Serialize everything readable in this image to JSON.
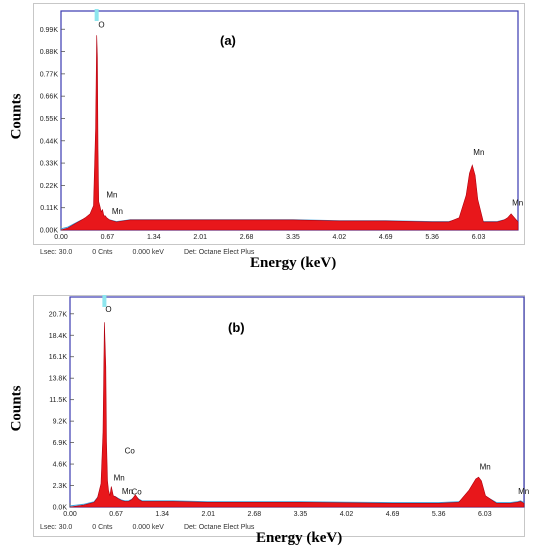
{
  "chart_data": [
    {
      "type": "area",
      "panel_label": "(a)",
      "ylabel": "Counts",
      "xlabel": "Energy (keV)",
      "x_ticks": [
        "0.00",
        "0.67",
        "1.34",
        "2.01",
        "2.68",
        "3.35",
        "4.02",
        "4.69",
        "5.36",
        "6.03"
      ],
      "y_ticks": [
        "0.00K",
        "0.11K",
        "0.22K",
        "0.33K",
        "0.44K",
        "0.55K",
        "0.66K",
        "0.77K",
        "0.88K",
        "0.99K"
      ],
      "xlim": [
        0.0,
        6.6
      ],
      "ylim": [
        0.0,
        1.08
      ],
      "y_unit": "K counts",
      "series": [
        {
          "x": [
            0.0,
            0.1,
            0.2,
            0.3,
            0.35,
            0.42,
            0.47,
            0.5,
            0.515,
            0.525,
            0.535,
            0.545,
            0.56,
            0.58,
            0.6,
            0.62,
            0.64,
            0.66,
            0.7,
            0.8,
            1.0,
            1.34,
            2.0,
            2.68,
            3.35,
            4.02,
            4.69,
            5.36,
            5.6,
            5.75,
            5.85,
            5.9,
            5.94,
            5.98,
            6.02,
            6.1,
            6.3,
            6.4,
            6.45,
            6.5,
            6.55,
            6.6
          ],
          "y": [
            0.0,
            0.01,
            0.03,
            0.05,
            0.06,
            0.08,
            0.12,
            0.5,
            0.96,
            0.85,
            0.4,
            0.14,
            0.12,
            0.09,
            0.1,
            0.07,
            0.07,
            0.06,
            0.05,
            0.04,
            0.05,
            0.05,
            0.05,
            0.05,
            0.05,
            0.045,
            0.045,
            0.04,
            0.04,
            0.06,
            0.17,
            0.28,
            0.32,
            0.27,
            0.15,
            0.04,
            0.04,
            0.05,
            0.06,
            0.08,
            0.06,
            0.04
          ]
        }
      ],
      "peak_labels": [
        {
          "text": "O",
          "x": 0.525,
          "y": 0.99
        },
        {
          "text": "Mn",
          "x": 0.64,
          "y": 0.15
        },
        {
          "text": "Mn",
          "x": 0.72,
          "y": 0.07
        },
        {
          "text": "Mn",
          "x": 5.94,
          "y": 0.36
        },
        {
          "text": "Mn",
          "x": 6.5,
          "y": 0.11
        }
      ],
      "status": {
        "lsec": "Lsec: 30.0",
        "cnts": "0 Cnts",
        "kev": "0.000 keV",
        "det": "Det: Octane Elect Plus"
      }
    },
    {
      "type": "area",
      "panel_label": "(b)",
      "ylabel": "Counts",
      "xlabel": "Energy (keV)",
      "x_ticks": [
        "0.00",
        "0.67",
        "1.34",
        "2.01",
        "2.68",
        "3.35",
        "4.02",
        "4.69",
        "5.36",
        "6.03"
      ],
      "y_ticks": [
        "0.0K",
        "2.3K",
        "4.6K",
        "6.9K",
        "9.2K",
        "11.5K",
        "13.8K",
        "16.1K",
        "18.4K",
        "20.7K"
      ],
      "xlim": [
        0.0,
        6.6
      ],
      "ylim": [
        0.0,
        22.5
      ],
      "y_unit": "K counts",
      "series": [
        {
          "x": [
            0.0,
            0.1,
            0.2,
            0.3,
            0.35,
            0.4,
            0.45,
            0.48,
            0.5,
            0.52,
            0.53,
            0.545,
            0.56,
            0.58,
            0.6,
            0.63,
            0.66,
            0.7,
            0.75,
            0.8,
            0.85,
            0.9,
            0.95,
            1.0,
            1.05,
            1.2,
            1.5,
            2.0,
            2.68,
            3.35,
            4.02,
            4.69,
            5.36,
            5.65,
            5.8,
            5.9,
            5.94,
            5.98,
            6.04,
            6.2,
            6.4,
            6.5,
            6.55,
            6.6
          ],
          "y": [
            0.0,
            0.1,
            0.2,
            0.4,
            0.5,
            1.0,
            2.5,
            8.0,
            19.8,
            15.0,
            7.0,
            2.8,
            1.8,
            1.2,
            2.2,
            1.2,
            1.1,
            0.9,
            0.7,
            0.6,
            0.6,
            0.8,
            1.3,
            0.8,
            0.6,
            0.6,
            0.6,
            0.5,
            0.5,
            0.5,
            0.45,
            0.4,
            0.4,
            0.5,
            1.8,
            3.0,
            3.2,
            2.8,
            1.2,
            0.4,
            0.4,
            0.5,
            0.6,
            0.4
          ]
        }
      ],
      "peak_labels": [
        {
          "text": "O",
          "x": 0.5,
          "y": 20.7
        },
        {
          "text": "Co",
          "x": 0.78,
          "y": 5.5
        },
        {
          "text": "Mn",
          "x": 0.62,
          "y": 2.6
        },
        {
          "text": "Mn",
          "x": 0.74,
          "y": 1.2
        },
        {
          "text": "Co",
          "x": 0.88,
          "y": 1.1
        },
        {
          "text": "Mn",
          "x": 5.94,
          "y": 3.8
        },
        {
          "text": "Mn",
          "x": 6.5,
          "y": 1.2
        }
      ],
      "status": {
        "lsec": "Lsec: 30.0",
        "cnts": "0 Cnts",
        "kev": "0.000 keV",
        "det": "Det: Octane Elect Plus"
      }
    }
  ],
  "colors": {
    "fill": "#e8171b",
    "fill_stroke": "#b00010",
    "background_trace": "#3ea3dc",
    "plot_border": "#3a3ab0",
    "cursor_marker": "#8ee6ee",
    "axis_text": "#222222"
  }
}
